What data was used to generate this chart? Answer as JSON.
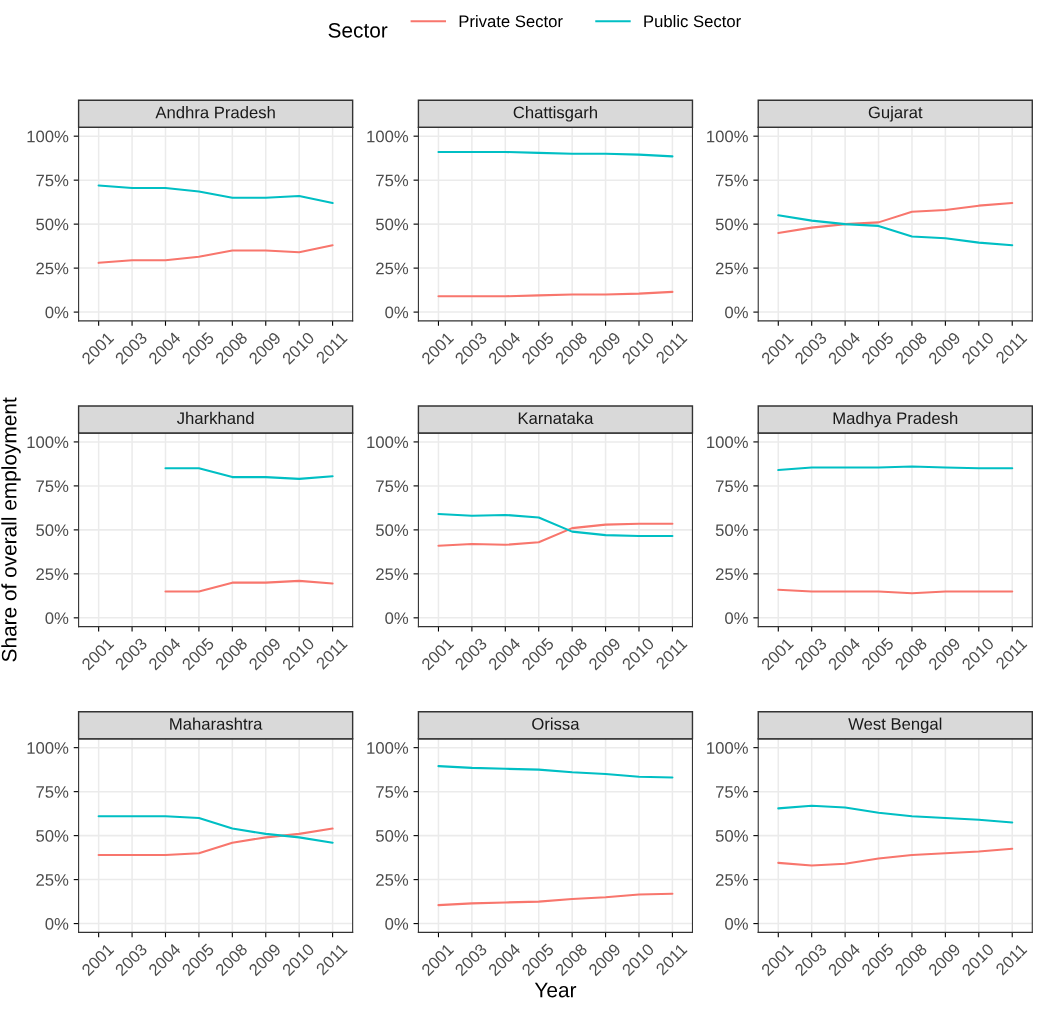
{
  "chart_data": [
    {
      "type": "line",
      "title": "Andhra Pradesh",
      "legend_title": "Sector",
      "legend": "top",
      "categories": [
        "2001",
        "2003",
        "2004",
        "2005",
        "2008",
        "2009",
        "2010",
        "2011"
      ],
      "ylim": [
        -5,
        105
      ],
      "yticks": [
        {
          "value": 0,
          "label": "0%"
        },
        {
          "value": 25,
          "label": "25%"
        },
        {
          "value": 50,
          "label": "50%"
        },
        {
          "value": 75,
          "label": "75%"
        },
        {
          "value": 100,
          "label": "100%"
        }
      ],
      "grid": true,
      "series": [
        {
          "name": "Private Sector",
          "color": "#f8766d",
          "values": [
            28,
            29.5,
            29.5,
            31.5,
            35,
            35,
            34,
            38
          ]
        },
        {
          "name": "Public Sector",
          "color": "#00bfc4",
          "values": [
            72,
            70.5,
            70.5,
            68.5,
            65,
            65,
            66,
            62
          ]
        }
      ]
    },
    {
      "type": "line",
      "title": "Chattisgarh",
      "categories": [
        "2001",
        "2003",
        "2004",
        "2005",
        "2008",
        "2009",
        "2010",
        "2011"
      ],
      "ylim": [
        -5,
        105
      ],
      "yticks": [
        {
          "value": 0,
          "label": "0%"
        },
        {
          "value": 25,
          "label": "25%"
        },
        {
          "value": 50,
          "label": "50%"
        },
        {
          "value": 75,
          "label": "75%"
        },
        {
          "value": 100,
          "label": "100%"
        }
      ],
      "grid": true,
      "series": [
        {
          "color": "#f8766d",
          "values": [
            9,
            9,
            9,
            9.5,
            10,
            10,
            10.5,
            11.5
          ]
        },
        {
          "color": "#00bfc4",
          "values": [
            91,
            91,
            91,
            90.5,
            90,
            90,
            89.5,
            88.5
          ]
        }
      ]
    },
    {
      "type": "line",
      "title": "Gujarat",
      "categories": [
        "2001",
        "2003",
        "2004",
        "2005",
        "2008",
        "2009",
        "2010",
        "2011"
      ],
      "ylim": [
        -5,
        105
      ],
      "yticks": [
        {
          "value": 0,
          "label": "0%"
        },
        {
          "value": 25,
          "label": "25%"
        },
        {
          "value": 50,
          "label": "50%"
        },
        {
          "value": 75,
          "label": "75%"
        },
        {
          "value": 100,
          "label": "100%"
        }
      ],
      "grid": true,
      "series": [
        {
          "color": "#f8766d",
          "values": [
            45,
            48,
            50,
            51,
            57,
            58,
            60.5,
            62
          ]
        },
        {
          "color": "#00bfc4",
          "values": [
            55,
            52,
            50,
            49,
            43,
            42,
            39.5,
            38
          ]
        }
      ]
    },
    {
      "type": "line",
      "title": "Jharkhand",
      "ylabel": "Share of overall employment",
      "categories": [
        "2001",
        "2003",
        "2004",
        "2005",
        "2008",
        "2009",
        "2010",
        "2011"
      ],
      "ylim": [
        -5,
        105
      ],
      "yticks": [
        {
          "value": 0,
          "label": "0%"
        },
        {
          "value": 25,
          "label": "25%"
        },
        {
          "value": 50,
          "label": "50%"
        },
        {
          "value": 75,
          "label": "75%"
        },
        {
          "value": 100,
          "label": "100%"
        }
      ],
      "grid": true,
      "series": [
        {
          "color": "#f8766d",
          "values": [
            null,
            null,
            15,
            15,
            20,
            20,
            21,
            19.5
          ]
        },
        {
          "color": "#00bfc4",
          "values": [
            null,
            null,
            85,
            85,
            80,
            80,
            79,
            80.5
          ]
        }
      ]
    },
    {
      "type": "line",
      "title": "Karnataka",
      "categories": [
        "2001",
        "2003",
        "2004",
        "2005",
        "2008",
        "2009",
        "2010",
        "2011"
      ],
      "ylim": [
        -5,
        105
      ],
      "yticks": [
        {
          "value": 0,
          "label": "0%"
        },
        {
          "value": 25,
          "label": "25%"
        },
        {
          "value": 50,
          "label": "50%"
        },
        {
          "value": 75,
          "label": "75%"
        },
        {
          "value": 100,
          "label": "100%"
        }
      ],
      "grid": true,
      "series": [
        {
          "color": "#f8766d",
          "values": [
            41,
            42,
            41.5,
            43,
            51,
            53,
            53.5,
            53.5
          ]
        },
        {
          "color": "#00bfc4",
          "values": [
            59,
            58,
            58.5,
            57,
            49,
            47,
            46.5,
            46.5
          ]
        }
      ]
    },
    {
      "type": "line",
      "title": "Madhya Pradesh",
      "categories": [
        "2001",
        "2003",
        "2004",
        "2005",
        "2008",
        "2009",
        "2010",
        "2011"
      ],
      "ylim": [
        -5,
        105
      ],
      "yticks": [
        {
          "value": 0,
          "label": "0%"
        },
        {
          "value": 25,
          "label": "25%"
        },
        {
          "value": 50,
          "label": "50%"
        },
        {
          "value": 75,
          "label": "75%"
        },
        {
          "value": 100,
          "label": "100%"
        }
      ],
      "grid": true,
      "series": [
        {
          "color": "#f8766d",
          "values": [
            16,
            15,
            15,
            15,
            14,
            15,
            15,
            15
          ]
        },
        {
          "color": "#00bfc4",
          "values": [
            84,
            85.5,
            85.5,
            85.5,
            86,
            85.5,
            85,
            85
          ]
        }
      ]
    },
    {
      "type": "line",
      "title": "Maharashtra",
      "categories": [
        "2001",
        "2003",
        "2004",
        "2005",
        "2008",
        "2009",
        "2010",
        "2011"
      ],
      "ylim": [
        -5,
        105
      ],
      "yticks": [
        {
          "value": 0,
          "label": "0%"
        },
        {
          "value": 25,
          "label": "25%"
        },
        {
          "value": 50,
          "label": "50%"
        },
        {
          "value": 75,
          "label": "75%"
        },
        {
          "value": 100,
          "label": "100%"
        }
      ],
      "grid": true,
      "series": [
        {
          "color": "#f8766d",
          "values": [
            39,
            39,
            39,
            40,
            46,
            49,
            51,
            54
          ]
        },
        {
          "color": "#00bfc4",
          "values": [
            61,
            61,
            61,
            60,
            54,
            51,
            49,
            46
          ]
        }
      ]
    },
    {
      "type": "line",
      "title": "Orissa",
      "xlabel": "Year",
      "categories": [
        "2001",
        "2003",
        "2004",
        "2005",
        "2008",
        "2009",
        "2010",
        "2011"
      ],
      "ylim": [
        -5,
        105
      ],
      "yticks": [
        {
          "value": 0,
          "label": "0%"
        },
        {
          "value": 25,
          "label": "25%"
        },
        {
          "value": 50,
          "label": "50%"
        },
        {
          "value": 75,
          "label": "75%"
        },
        {
          "value": 100,
          "label": "100%"
        }
      ],
      "grid": true,
      "series": [
        {
          "color": "#f8766d",
          "values": [
            10.5,
            11.5,
            12,
            12.5,
            14,
            15,
            16.5,
            17
          ]
        },
        {
          "color": "#00bfc4",
          "values": [
            89.5,
            88.5,
            88,
            87.5,
            86,
            85,
            83.5,
            83
          ]
        }
      ]
    },
    {
      "type": "line",
      "title": "West Bengal",
      "categories": [
        "2001",
        "2003",
        "2004",
        "2005",
        "2008",
        "2009",
        "2010",
        "2011"
      ],
      "ylim": [
        -5,
        105
      ],
      "yticks": [
        {
          "value": 0,
          "label": "0%"
        },
        {
          "value": 25,
          "label": "25%"
        },
        {
          "value": 50,
          "label": "50%"
        },
        {
          "value": 75,
          "label": "75%"
        },
        {
          "value": 100,
          "label": "100%"
        }
      ],
      "grid": true,
      "series": [
        {
          "color": "#f8766d",
          "values": [
            34.5,
            33,
            34,
            37,
            39,
            40,
            41,
            42.5
          ]
        },
        {
          "color": "#00bfc4",
          "values": [
            65.5,
            67,
            66,
            63,
            61,
            60,
            59,
            57.5
          ]
        }
      ]
    }
  ]
}
